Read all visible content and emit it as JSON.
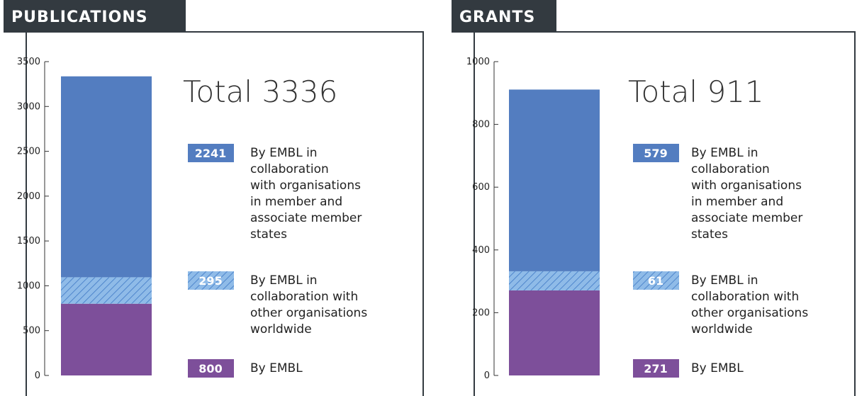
{
  "chart_data": [
    {
      "type": "stacked_bar",
      "title": "PUBLICATIONS",
      "annotation": "Total 3336",
      "ylim": [
        0,
        3500
      ],
      "yticks": [
        0,
        500,
        1000,
        1500,
        2000,
        2500,
        3000,
        3500
      ],
      "series": [
        {
          "name": "By EMBL",
          "color": "#7d4f9a",
          "values": [
            800
          ]
        },
        {
          "name": "By EMBL in\ncollaboration with\nother organisations\nworldwide",
          "color": "#8fbbe8",
          "pattern": "hatch",
          "values": [
            295
          ]
        },
        {
          "name": "By EMBL in\ncollaboration\nwith organisations\nin member and\nassociate member\nstates",
          "color": "#537dc0",
          "values": [
            2241
          ]
        }
      ]
    },
    {
      "type": "stacked_bar",
      "title": "GRANTS",
      "annotation": "Total 911",
      "ylim": [
        0,
        1000
      ],
      "yticks": [
        0,
        200,
        400,
        600,
        800,
        1000
      ],
      "series": [
        {
          "name": "By EMBL",
          "color": "#7d4f9a",
          "values": [
            271
          ]
        },
        {
          "name": "By EMBL in\ncollaboration with\nother organisations\nworldwide",
          "color": "#8fbbe8",
          "pattern": "hatch",
          "values": [
            61
          ]
        },
        {
          "name": "By EMBL in\ncollaboration\nwith organisations\nin member and\nassociate member\nstates",
          "color": "#537dc0",
          "values": [
            579
          ]
        }
      ]
    }
  ]
}
